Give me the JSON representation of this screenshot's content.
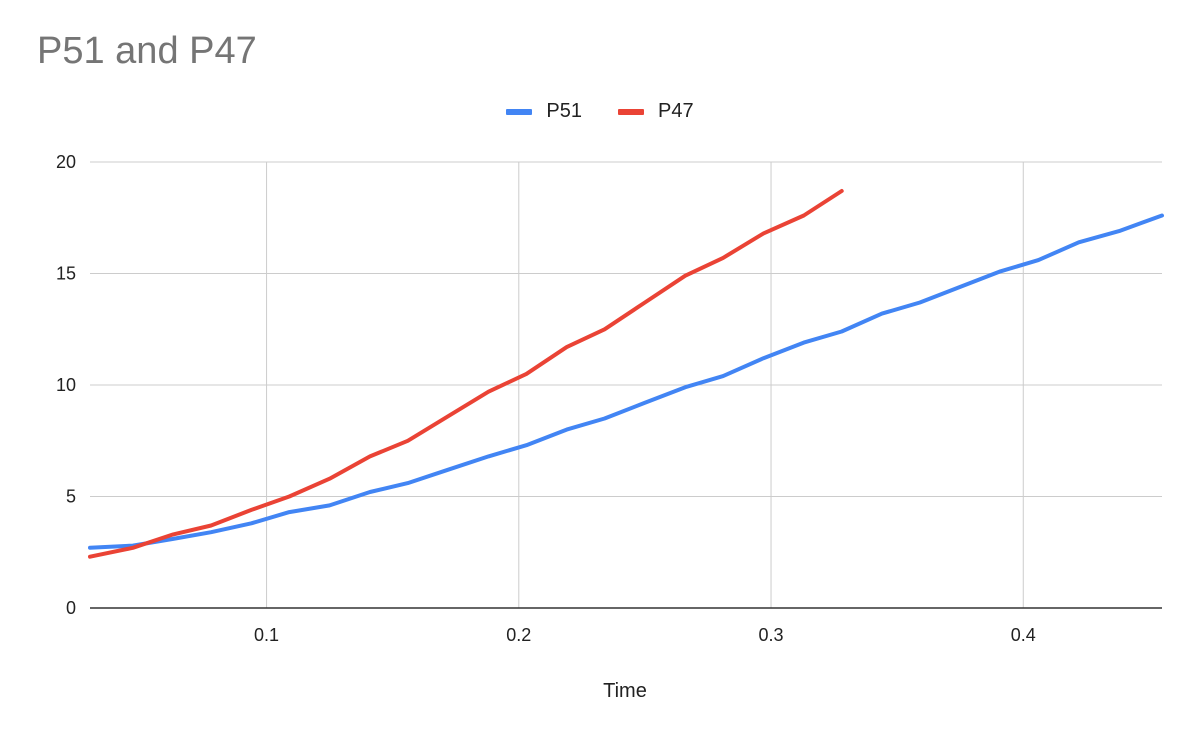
{
  "chart_data": {
    "type": "line",
    "title": "P51 and P47",
    "xlabel": "Time",
    "ylabel": "",
    "xlim": [
      0.03,
      0.455
    ],
    "ylim": [
      0,
      20
    ],
    "xticks": [
      0.1,
      0.2,
      0.3,
      0.4
    ],
    "xtick_labels": [
      "0.1",
      "0.2",
      "0.3",
      "0.4"
    ],
    "yticks": [
      0,
      5,
      10,
      15,
      20
    ],
    "ytick_labels": [
      "0",
      "5",
      "10",
      "15",
      "20"
    ],
    "grid": true,
    "legend": "top-center",
    "series": [
      {
        "name": "P51",
        "color": "#4285F4",
        "x": [
          0.03,
          0.047,
          0.063,
          0.078,
          0.094,
          0.109,
          0.125,
          0.141,
          0.156,
          0.172,
          0.188,
          0.203,
          0.219,
          0.234,
          0.25,
          0.266,
          0.281,
          0.297,
          0.313,
          0.328,
          0.344,
          0.359,
          0.375,
          0.391,
          0.406,
          0.422,
          0.438,
          0.455
        ],
        "y": [
          2.7,
          2.8,
          3.1,
          3.4,
          3.8,
          4.3,
          4.6,
          5.2,
          5.6,
          6.2,
          6.8,
          7.3,
          8.0,
          8.5,
          9.2,
          9.9,
          10.4,
          11.2,
          11.9,
          12.4,
          13.2,
          13.7,
          14.4,
          15.1,
          15.6,
          16.4,
          16.9,
          17.6
        ]
      },
      {
        "name": "P47",
        "color": "#EA4335",
        "x": [
          0.03,
          0.047,
          0.063,
          0.078,
          0.094,
          0.109,
          0.125,
          0.141,
          0.156,
          0.172,
          0.188,
          0.203,
          0.219,
          0.234,
          0.25,
          0.266,
          0.281,
          0.297,
          0.313,
          0.328
        ],
        "y": [
          2.3,
          2.7,
          3.3,
          3.7,
          4.4,
          5.0,
          5.8,
          6.8,
          7.5,
          8.6,
          9.7,
          10.5,
          11.7,
          12.5,
          13.7,
          14.9,
          15.7,
          16.8,
          17.6,
          18.7
        ]
      }
    ]
  }
}
